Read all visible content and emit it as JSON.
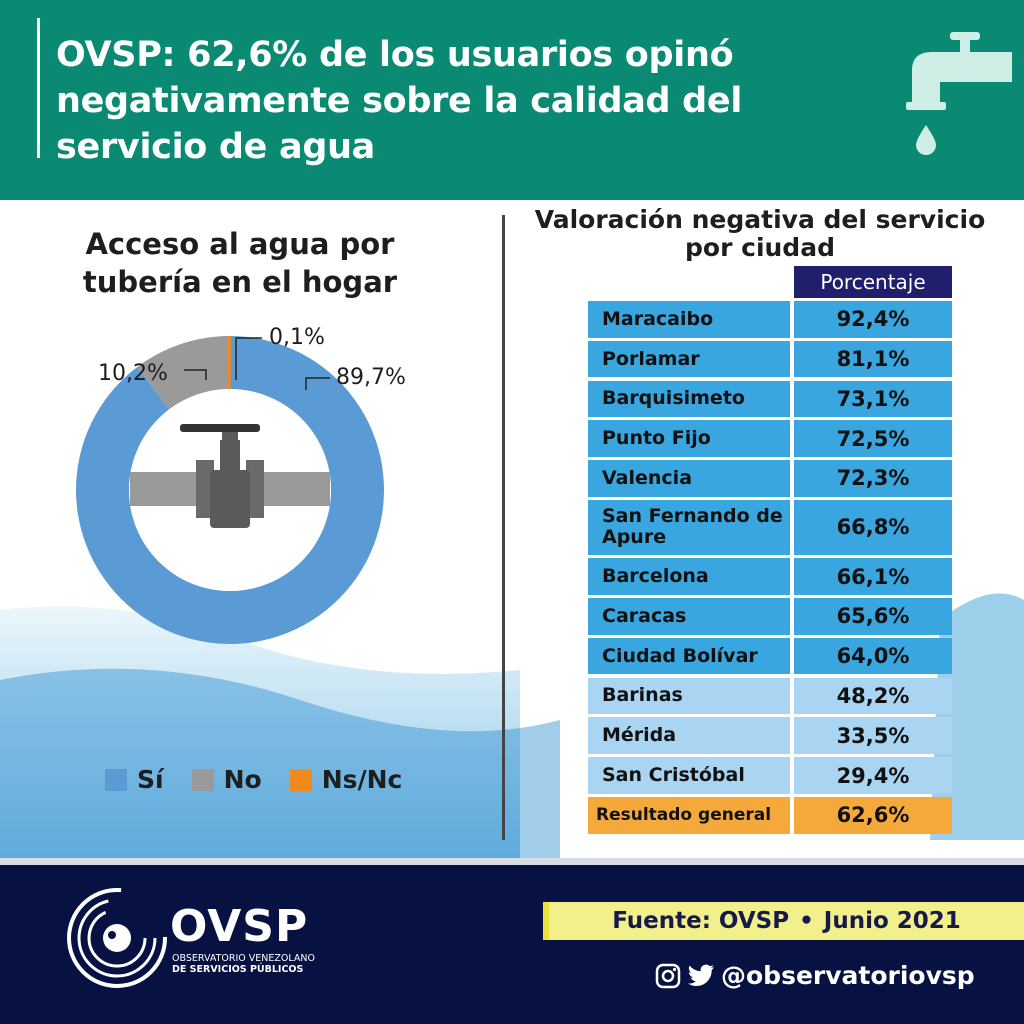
{
  "header": {
    "title": "OVSP: 62,6% de los usuarios opinó negativamente sobre la calidad del servicio de agua",
    "icon": "water-tap-icon",
    "bg_color": "#0a8a72"
  },
  "left_panel": {
    "title_line1": "Acceso al agua por",
    "title_line2": "tubería en el hogar",
    "center_icon": "pipe-valve-icon",
    "labels": {
      "si": "89,7%",
      "no": "10,2%",
      "nsnc": "0,1%"
    }
  },
  "legend": [
    {
      "label": "Sí",
      "color": "#5b9bd5"
    },
    {
      "label": "No",
      "color": "#9a9a9a"
    },
    {
      "label": "Ns/Nc",
      "color": "#f08a1c"
    }
  ],
  "right_panel": {
    "title_line1": "Valoración negativa del servicio",
    "title_line2": "por ciudad",
    "column_header": "Porcentaje",
    "rows": [
      {
        "city": "Maracaibo",
        "value": "92,4%"
      },
      {
        "city": "Porlamar",
        "value": "81,1%"
      },
      {
        "city": "Barquisimeto",
        "value": "73,1%"
      },
      {
        "city": "Punto Fijo",
        "value": "72,5%"
      },
      {
        "city": "Valencia",
        "value": "72,3%"
      },
      {
        "city": "San Fernando de Apure",
        "value": "66,8%"
      },
      {
        "city": "Barcelona",
        "value": "66,1%"
      },
      {
        "city": "Caracas",
        "value": "65,6%"
      },
      {
        "city": "Ciudad Bolívar",
        "value": "64,0%"
      },
      {
        "city": "Barinas",
        "value": "48,2%"
      },
      {
        "city": "Mérida",
        "value": "33,5%"
      },
      {
        "city": "San Cristóbal",
        "value": "29,4%"
      }
    ],
    "total": {
      "label": "Resultado general",
      "value": "62,6%"
    }
  },
  "chart_data": [
    {
      "type": "pie",
      "title": "Acceso al agua por tubería en el hogar",
      "categories": [
        "Sí",
        "No",
        "Ns/Nc"
      ],
      "values": [
        89.7,
        10.2,
        0.1
      ],
      "colors": [
        "#5b9bd5",
        "#9a9a9a",
        "#f08a1c"
      ],
      "legend": "bottom"
    },
    {
      "type": "table",
      "title": "Valoración negativa del servicio por ciudad",
      "columns": [
        "Porcentaje"
      ],
      "categories": [
        "Maracaibo",
        "Porlamar",
        "Barquisimeto",
        "Punto Fijo",
        "Valencia",
        "San Fernando de Apure",
        "Barcelona",
        "Caracas",
        "Ciudad Bolívar",
        "Barinas",
        "Mérida",
        "San Cristóbal",
        "Resultado general"
      ],
      "values": [
        92.4,
        81.1,
        73.1,
        72.5,
        72.3,
        66.8,
        66.1,
        65.6,
        64.0,
        48.2,
        33.5,
        29.4,
        62.6
      ]
    }
  ],
  "footer": {
    "logo_text": "OVSP",
    "logo_sub1": "OBSERVATORIO VENEZOLANO",
    "logo_sub2": "DE SERVICIOS PÚBLICOS",
    "source_label": "Fuente: OVSP",
    "source_sep": "•",
    "source_date": "Junio 2021",
    "social_handle": "@observatoriovsp",
    "social_icons": [
      "instagram-icon",
      "twitter-icon"
    ]
  }
}
